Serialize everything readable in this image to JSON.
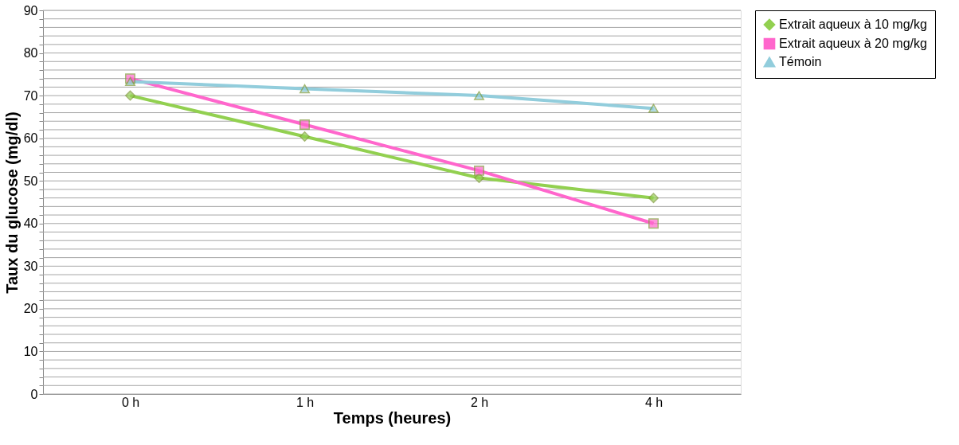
{
  "chart_data": {
    "type": "line",
    "xlabel": "Temps (heures)",
    "ylabel": "Taux du glucose (mg/dl)",
    "categories": [
      "0 h",
      "1 h",
      "2 h",
      "4 h"
    ],
    "series": [
      {
        "name": "Extrait aqueux à 10 mg/kg",
        "color": "#92d050",
        "marker": "diamond",
        "values": [
          70,
          60.4,
          50.7,
          46
        ]
      },
      {
        "name": "Extrait aqueux à 20 mg/kg",
        "color": "#ff66cc",
        "marker": "square",
        "values": [
          74,
          63.2,
          52.4,
          40
        ]
      },
      {
        "name": "Témoin",
        "color": "#92cddc",
        "marker": "triangle",
        "values": [
          73.3,
          71.6,
          70,
          67
        ]
      }
    ],
    "ylim": [
      0,
      90
    ],
    "yticks": [
      0,
      {
        "value": 2,
        "label": null
      },
      {
        "value": 4,
        "label": null
      },
      {
        "value": 6,
        "label": null
      },
      {
        "value": 8,
        "label": null
      },
      10,
      {
        "value": 12,
        "label": null
      },
      {
        "value": 14,
        "label": null
      },
      {
        "value": 16,
        "label": null
      },
      {
        "value": 18,
        "label": null
      },
      20,
      {
        "value": 22,
        "label": null
      },
      {
        "value": 24,
        "label": null
      },
      {
        "value": 26,
        "label": null
      },
      {
        "value": 28,
        "label": null
      },
      30,
      {
        "value": 32,
        "label": null
      },
      {
        "value": 34,
        "label": null
      },
      {
        "value": 36,
        "label": null
      },
      {
        "value": 38,
        "label": null
      },
      40,
      {
        "value": 42,
        "label": null
      },
      {
        "value": 44,
        "label": null
      },
      {
        "value": 46,
        "label": null
      },
      {
        "value": 48,
        "label": null
      },
      50,
      {
        "value": 52,
        "label": null
      },
      {
        "value": 54,
        "label": null
      },
      {
        "value": 56,
        "label": null
      },
      {
        "value": 58,
        "label": null
      },
      60,
      {
        "value": 62,
        "label": null
      },
      {
        "value": 64,
        "label": null
      },
      {
        "value": 66,
        "label": null
      },
      {
        "value": 68,
        "label": null
      },
      70,
      {
        "value": 72,
        "label": null
      },
      {
        "value": 74,
        "label": null
      },
      {
        "value": 76,
        "label": null
      },
      {
        "value": 78,
        "label": null
      },
      80,
      {
        "value": 82,
        "label": null
      },
      {
        "value": 84,
        "label": null
      },
      {
        "value": 86,
        "label": null
      },
      {
        "value": 88,
        "label": null
      },
      90
    ],
    "grid": "y",
    "legend": "right",
    "line_style": "solid"
  }
}
